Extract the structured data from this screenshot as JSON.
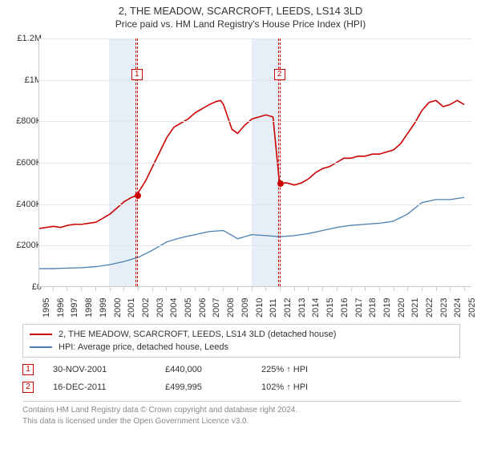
{
  "title": {
    "main": "2, THE MEADOW, SCARCROFT, LEEDS, LS14 3LD",
    "sub": "Price paid vs. HM Land Registry's House Price Index (HPI)"
  },
  "chart": {
    "type": "line",
    "x_axis": {
      "years": [
        1995,
        1996,
        1997,
        1998,
        1999,
        2000,
        2001,
        2002,
        2003,
        2004,
        2005,
        2006,
        2007,
        2008,
        2009,
        2010,
        2011,
        2012,
        2013,
        2014,
        2015,
        2016,
        2017,
        2018,
        2019,
        2020,
        2021,
        2022,
        2023,
        2024,
        2025
      ],
      "min": 1995,
      "max": 2025.5,
      "label_fontsize": 11,
      "label_rotation": -90
    },
    "y_axis": {
      "ticks": [
        0,
        200000,
        400000,
        600000,
        800000,
        1000000,
        1200000
      ],
      "tick_labels": [
        "£0",
        "£200K",
        "£400K",
        "£600K",
        "£800K",
        "£1M",
        "£1.2M"
      ],
      "min": 0,
      "max": 1200000,
      "label_fontsize": 11
    },
    "grid_color": "#e6e6e6",
    "axis_color": "#cccccc",
    "background_color": "#ffffff",
    "shaded_bands_color": "#dce8f4",
    "shaded_bands": [
      {
        "from": 1999.9,
        "to": 2001.9
      },
      {
        "from": 2009.95,
        "to": 2011.95
      }
    ],
    "dashed_spans": [
      {
        "from": 2001.8,
        "to": 2001.95,
        "marker": "1",
        "dot_value": 440000
      },
      {
        "from": 2011.85,
        "to": 2012.0,
        "marker": "2",
        "dot_value": 499995
      }
    ],
    "series": [
      {
        "name": "property",
        "label": "2, THE MEADOW, SCARCROFT, LEEDS, LS14 3LD (detached house)",
        "color": "#cc0000",
        "line_width": 1.6,
        "points": [
          [
            1995,
            280000
          ],
          [
            1995.5,
            285000
          ],
          [
            1996,
            290000
          ],
          [
            1996.5,
            285000
          ],
          [
            1997,
            295000
          ],
          [
            1997.5,
            300000
          ],
          [
            1998,
            300000
          ],
          [
            1998.5,
            305000
          ],
          [
            1999,
            310000
          ],
          [
            1999.5,
            330000
          ],
          [
            2000,
            350000
          ],
          [
            2000.5,
            380000
          ],
          [
            2001,
            410000
          ],
          [
            2001.5,
            430000
          ],
          [
            2001.9,
            440000
          ],
          [
            2002,
            455000
          ],
          [
            2002.5,
            510000
          ],
          [
            2003,
            580000
          ],
          [
            2003.5,
            650000
          ],
          [
            2004,
            720000
          ],
          [
            2004.5,
            770000
          ],
          [
            2005,
            790000
          ],
          [
            2005.5,
            810000
          ],
          [
            2006,
            840000
          ],
          [
            2006.5,
            860000
          ],
          [
            2007,
            880000
          ],
          [
            2007.5,
            895000
          ],
          [
            2007.8,
            900000
          ],
          [
            2008,
            880000
          ],
          [
            2008.3,
            820000
          ],
          [
            2008.6,
            760000
          ],
          [
            2009,
            740000
          ],
          [
            2009.5,
            780000
          ],
          [
            2010,
            810000
          ],
          [
            2010.5,
            820000
          ],
          [
            2011,
            830000
          ],
          [
            2011.5,
            820000
          ],
          [
            2011.95,
            499995
          ],
          [
            2012.5,
            500000
          ],
          [
            2013,
            490000
          ],
          [
            2013.5,
            500000
          ],
          [
            2014,
            520000
          ],
          [
            2014.5,
            550000
          ],
          [
            2015,
            570000
          ],
          [
            2015.5,
            580000
          ],
          [
            2016,
            600000
          ],
          [
            2016.5,
            620000
          ],
          [
            2017,
            620000
          ],
          [
            2017.5,
            630000
          ],
          [
            2018,
            630000
          ],
          [
            2018.5,
            640000
          ],
          [
            2019,
            640000
          ],
          [
            2019.5,
            650000
          ],
          [
            2020,
            660000
          ],
          [
            2020.5,
            690000
          ],
          [
            2021,
            740000
          ],
          [
            2021.5,
            790000
          ],
          [
            2022,
            850000
          ],
          [
            2022.5,
            890000
          ],
          [
            2023,
            900000
          ],
          [
            2023.5,
            870000
          ],
          [
            2024,
            880000
          ],
          [
            2024.5,
            900000
          ],
          [
            2025,
            880000
          ]
        ]
      },
      {
        "name": "hpi",
        "label": "HPI: Average price, detached house, Leeds",
        "color": "#4a7fb0",
        "line_width": 1.3,
        "points": [
          [
            1995,
            85000
          ],
          [
            1996,
            85000
          ],
          [
            1997,
            88000
          ],
          [
            1998,
            90000
          ],
          [
            1999,
            95000
          ],
          [
            2000,
            105000
          ],
          [
            2001,
            120000
          ],
          [
            2002,
            140000
          ],
          [
            2003,
            175000
          ],
          [
            2004,
            215000
          ],
          [
            2005,
            235000
          ],
          [
            2006,
            250000
          ],
          [
            2007,
            265000
          ],
          [
            2008,
            270000
          ],
          [
            2008.5,
            250000
          ],
          [
            2009,
            230000
          ],
          [
            2010,
            250000
          ],
          [
            2011,
            245000
          ],
          [
            2012,
            240000
          ],
          [
            2013,
            245000
          ],
          [
            2014,
            255000
          ],
          [
            2015,
            270000
          ],
          [
            2016,
            285000
          ],
          [
            2017,
            295000
          ],
          [
            2018,
            300000
          ],
          [
            2019,
            305000
          ],
          [
            2020,
            315000
          ],
          [
            2021,
            350000
          ],
          [
            2022,
            405000
          ],
          [
            2023,
            420000
          ],
          [
            2024,
            420000
          ],
          [
            2025,
            430000
          ]
        ]
      }
    ]
  },
  "legend": {
    "items": [
      {
        "color": "#cc0000",
        "label": "2, THE MEADOW, SCARCROFT, LEEDS, LS14 3LD (detached house)"
      },
      {
        "color": "#4a7fb0",
        "label": "HPI: Average price, detached house, Leeds"
      }
    ]
  },
  "sales": [
    {
      "num": "1",
      "date": "30-NOV-2001",
      "price": "£440,000",
      "hpi": "225% ↑ HPI"
    },
    {
      "num": "2",
      "date": "16-DEC-2011",
      "price": "£499,995",
      "hpi": "102% ↑ HPI"
    }
  ],
  "footer": {
    "line1": "Contains HM Land Registry data © Crown copyright and database right 2024.",
    "line2": "This data is licensed under the Open Government Licence v3.0."
  }
}
